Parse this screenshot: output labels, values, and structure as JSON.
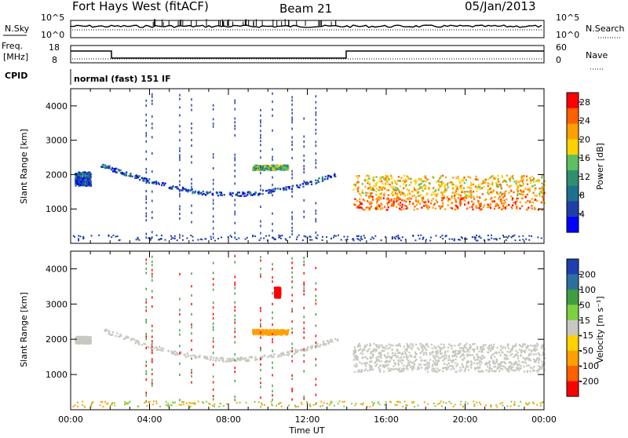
{
  "header": {
    "station": "Fort Hays West (fitACF)",
    "beam": "Beam 21",
    "date": "05/Jan/2013"
  },
  "strips": {
    "nsky_label": "N.Sky",
    "nsky_ticks": [
      "10^5",
      "10^0"
    ],
    "nsearch_label": "N.Search",
    "nsearch_ticks": [
      "10^5",
      "10^0"
    ],
    "freq_label_1": "Freq.",
    "freq_label_2": "[MHz]",
    "freq_ticks": [
      "18",
      "8"
    ],
    "nave_label": "Nave",
    "nave_ticks": [
      "60",
      "0"
    ],
    "cpid_label": "CPID",
    "cpid_text": "normal (fast) 151 IF"
  },
  "chart_data": [
    {
      "type": "heatmap",
      "panel": "power",
      "ylabel": "Slant Range [km]",
      "xlabel": "Time UT",
      "ylim": [
        0,
        4500
      ],
      "yticks": [
        "4000",
        "3000",
        "2000",
        "1000"
      ],
      "ytick_values": [
        4000,
        3000,
        2000,
        1000
      ],
      "xlim": [
        0,
        24
      ],
      "xticks": [
        "00:00",
        "04:00",
        "08:00",
        "12:00",
        "16:00",
        "20:00",
        "00:00"
      ],
      "colorbar": {
        "label": "Power [dB]",
        "ticks": [
          "28",
          "24",
          "20",
          "16",
          "12",
          "8",
          "4"
        ],
        "tick_values": [
          28,
          24,
          20,
          16,
          12,
          8,
          4
        ],
        "range": [
          0,
          30
        ],
        "colors": [
          "#0000ff",
          "#1f3fa8",
          "#1f6f8f",
          "#2f8f6f",
          "#5fbf5f",
          "#ffd200",
          "#ffa000",
          "#ff6000",
          "#ff0000"
        ]
      },
      "features": [
        {
          "name": "early echoes",
          "x": [
            0.2,
            1.0
          ],
          "range_km": [
            1700,
            2100
          ],
          "power_db": 6
        },
        {
          "name": "descending arc",
          "x": [
            1.5,
            13.5
          ],
          "range_km": [
            1450,
            2450
          ],
          "power_db": 6
        },
        {
          "name": "patch",
          "x": [
            9.2,
            11.0
          ],
          "range_km": [
            2150,
            2300
          ],
          "power_db": 14
        },
        {
          "name": "main band",
          "x": [
            14.3,
            24
          ],
          "range_km": [
            1000,
            2000
          ],
          "power_db": 20
        }
      ]
    },
    {
      "type": "heatmap",
      "panel": "velocity",
      "ylabel": "Slant Range [km]",
      "xlabel": "Time UT",
      "ylim": [
        0,
        4500
      ],
      "yticks": [
        "4000",
        "3000",
        "2000",
        "1000"
      ],
      "ytick_values": [
        4000,
        3000,
        2000,
        1000
      ],
      "xlim": [
        0,
        24
      ],
      "xticks": [
        "00:00",
        "04:00",
        "08:00",
        "12:00",
        "16:00",
        "20:00",
        "00:00"
      ],
      "colorbar": {
        "label": "Velocity [m s⁻¹]",
        "ticks": [
          "200",
          "100",
          "50",
          "15",
          "-15",
          "-50",
          "-100",
          "-200"
        ],
        "tick_values": [
          200,
          100,
          50,
          15,
          -15,
          -50,
          -100,
          -200
        ],
        "colors": [
          "#ff0000",
          "#ff6000",
          "#ffa000",
          "#ffd200",
          "#c8c8c0",
          "#7fd040",
          "#3f9f3f",
          "#2f6fa0",
          "#1f3fb0"
        ]
      },
      "features": [
        {
          "name": "early echoes",
          "x": [
            0.2,
            1.0
          ],
          "range_km": [
            1900,
            2100
          ],
          "velocity": 0
        },
        {
          "name": "descending arc",
          "x": [
            1.5,
            13.5
          ],
          "range_km": [
            1450,
            2450
          ],
          "velocity": 0
        },
        {
          "name": "patch",
          "x": [
            9.2,
            11.0
          ],
          "range_km": [
            2150,
            2300
          ],
          "velocity": -40
        },
        {
          "name": "main band",
          "x": [
            14.3,
            24
          ],
          "range_km": [
            1100,
            1900
          ],
          "velocity": 0
        },
        {
          "name": "high-range echo",
          "x": [
            10.3,
            10.6
          ],
          "range_km": [
            3200,
            3500
          ],
          "velocity": -180
        }
      ]
    }
  ]
}
